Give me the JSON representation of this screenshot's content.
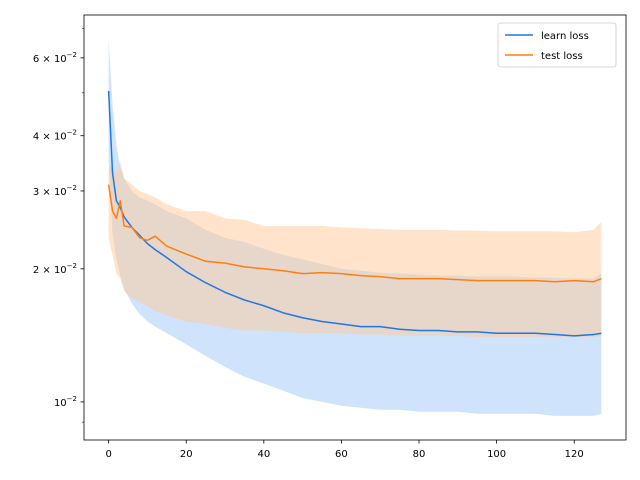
{
  "chart_data": {
    "type": "line",
    "title": "",
    "xlabel": "",
    "ylabel": "",
    "y_scale": "log",
    "xlim": [
      -6.35,
      133.35
    ],
    "ylim": [
      0.0082,
      0.075
    ],
    "grid": false,
    "legend_position": "upper right",
    "x_ticks": [
      0,
      20,
      40,
      60,
      80,
      100,
      120
    ],
    "x_tick_labels": [
      "0",
      "20",
      "40",
      "60",
      "80",
      "100",
      "120"
    ],
    "y_ticks": [
      0.01,
      0.02,
      0.03,
      0.04,
      0.06
    ],
    "y_tick_labels": [
      "10^{-2}",
      "2×10^{-2}",
      "3×10^{-2}",
      "4×10^{-2}",
      "6×10^{-2}"
    ],
    "y_tick_parts": [
      {
        "mantissa": "",
        "exponent": "−2"
      },
      {
        "mantissa": "2 × 10",
        "exponent": "−2"
      },
      {
        "mantissa": "3 × 10",
        "exponent": "−2"
      },
      {
        "mantissa": "4 × 10",
        "exponent": "−2"
      },
      {
        "mantissa": "6 × 10",
        "exponent": "−2"
      }
    ],
    "series": [
      {
        "name": "learn loss",
        "color": "#1f77e4",
        "band_color": "#9fc9f9",
        "x": [
          0,
          1,
          2,
          3,
          4,
          6,
          8,
          10,
          12,
          15,
          20,
          25,
          30,
          35,
          40,
          45,
          50,
          55,
          60,
          65,
          70,
          75,
          80,
          85,
          90,
          95,
          100,
          105,
          110,
          115,
          120,
          125,
          127
        ],
        "y": [
          0.0505,
          0.033,
          0.0285,
          0.0275,
          0.0262,
          0.0248,
          0.0238,
          0.0228,
          0.0221,
          0.0212,
          0.0197,
          0.0186,
          0.0177,
          0.017,
          0.0165,
          0.0159,
          0.0155,
          0.0152,
          0.015,
          0.0148,
          0.0148,
          0.0146,
          0.0145,
          0.0145,
          0.0144,
          0.0144,
          0.0143,
          0.0143,
          0.0143,
          0.0142,
          0.0141,
          0.0142,
          0.0143
        ],
        "band_upper": [
          0.066,
          0.047,
          0.038,
          0.034,
          0.032,
          0.03,
          0.029,
          0.0285,
          0.028,
          0.027,
          0.026,
          0.0245,
          0.0235,
          0.023,
          0.0222,
          0.0215,
          0.021,
          0.0205,
          0.02,
          0.0198,
          0.0196,
          0.0195,
          0.0194,
          0.0193,
          0.0193,
          0.0192,
          0.0192,
          0.0192,
          0.0191,
          0.0191,
          0.019,
          0.019,
          0.0195
        ],
        "band_lower": [
          0.0355,
          0.024,
          0.021,
          0.0193,
          0.018,
          0.0167,
          0.0158,
          0.0152,
          0.0148,
          0.0143,
          0.0135,
          0.0127,
          0.012,
          0.0114,
          0.011,
          0.0106,
          0.0102,
          0.01,
          0.0098,
          0.0097,
          0.0096,
          0.0096,
          0.0095,
          0.0095,
          0.0095,
          0.0094,
          0.0094,
          0.0094,
          0.0094,
          0.0093,
          0.0093,
          0.0093,
          0.0094
        ]
      },
      {
        "name": "test loss",
        "color": "#ff7f0e",
        "band_color": "#ffc797",
        "x": [
          0,
          1,
          2,
          3,
          4,
          6,
          8,
          10,
          12,
          15,
          20,
          25,
          30,
          35,
          40,
          45,
          50,
          55,
          60,
          65,
          70,
          75,
          80,
          85,
          90,
          95,
          100,
          105,
          110,
          115,
          120,
          125,
          127
        ],
        "y": [
          0.031,
          0.027,
          0.026,
          0.0285,
          0.025,
          0.0248,
          0.0235,
          0.0232,
          0.0237,
          0.0225,
          0.0216,
          0.0208,
          0.0206,
          0.0202,
          0.02,
          0.0198,
          0.0195,
          0.0196,
          0.0195,
          0.0193,
          0.0192,
          0.019,
          0.019,
          0.019,
          0.0189,
          0.0188,
          0.0188,
          0.0188,
          0.0188,
          0.0187,
          0.0188,
          0.0187,
          0.019
        ],
        "band_upper": [
          0.034,
          0.034,
          0.033,
          0.035,
          0.032,
          0.031,
          0.03,
          0.0295,
          0.029,
          0.028,
          0.027,
          0.027,
          0.026,
          0.0258,
          0.025,
          0.025,
          0.025,
          0.025,
          0.0248,
          0.0247,
          0.0246,
          0.0245,
          0.0245,
          0.0245,
          0.0244,
          0.0244,
          0.0243,
          0.0243,
          0.0243,
          0.0243,
          0.0242,
          0.0245,
          0.0255
        ],
        "band_lower": [
          0.0235,
          0.0215,
          0.0195,
          0.019,
          0.0178,
          0.0172,
          0.0168,
          0.0165,
          0.016,
          0.0157,
          0.0152,
          0.015,
          0.0147,
          0.0145,
          0.0145,
          0.0144,
          0.0143,
          0.0143,
          0.0143,
          0.0142,
          0.0142,
          0.0141,
          0.0141,
          0.0141,
          0.0141,
          0.014,
          0.014,
          0.014,
          0.014,
          0.014,
          0.014,
          0.014,
          0.0141
        ]
      }
    ]
  }
}
